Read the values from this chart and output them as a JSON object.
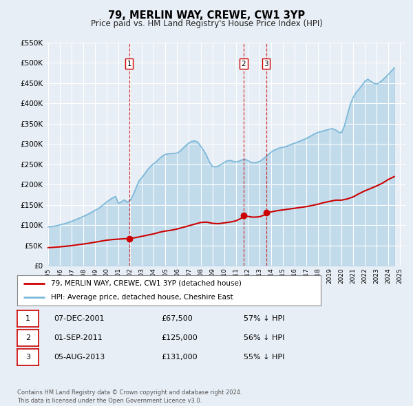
{
  "title": "79, MERLIN WAY, CREWE, CW1 3YP",
  "subtitle": "Price paid vs. HM Land Registry's House Price Index (HPI)",
  "hpi_color": "#7ab8d9",
  "price_color": "#cc0000",
  "marker_color": "#cc0000",
  "ylim": [
    0,
    550000
  ],
  "yticks": [
    0,
    50000,
    100000,
    150000,
    200000,
    250000,
    300000,
    350000,
    400000,
    450000,
    500000,
    550000
  ],
  "ytick_labels": [
    "£0",
    "£50K",
    "£100K",
    "£150K",
    "£200K",
    "£250K",
    "£300K",
    "£350K",
    "£400K",
    "£450K",
    "£500K",
    "£550K"
  ],
  "xmin": 1994.7,
  "xmax": 2025.5,
  "xtick_years": [
    1995,
    1996,
    1997,
    1998,
    1999,
    2000,
    2001,
    2002,
    2003,
    2004,
    2005,
    2006,
    2007,
    2008,
    2009,
    2010,
    2011,
    2012,
    2013,
    2014,
    2015,
    2016,
    2017,
    2018,
    2019,
    2020,
    2021,
    2022,
    2023,
    2024,
    2025
  ],
  "sale_dates": [
    2001.92,
    2011.67,
    2013.59
  ],
  "sale_prices": [
    67500,
    125000,
    131000
  ],
  "sale_labels": [
    "1",
    "2",
    "3"
  ],
  "vline_color": "#cc0000",
  "legend_label_red": "79, MERLIN WAY, CREWE, CW1 3YP (detached house)",
  "legend_label_blue": "HPI: Average price, detached house, Cheshire East",
  "table_rows": [
    [
      "1",
      "07-DEC-2001",
      "£67,500",
      "57% ↓ HPI"
    ],
    [
      "2",
      "01-SEP-2011",
      "£125,000",
      "56% ↓ HPI"
    ],
    [
      "3",
      "05-AUG-2013",
      "£131,000",
      "55% ↓ HPI"
    ]
  ],
  "footnote": "Contains HM Land Registry data © Crown copyright and database right 2024.\nThis data is licensed under the Open Government Licence v3.0.",
  "bg_color": "#e8eef5",
  "plot_bg_color": "#e8eef5",
  "grid_color": "#ffffff",
  "hpi_data_x": [
    1995.0,
    1995.25,
    1995.5,
    1995.75,
    1996.0,
    1996.25,
    1996.5,
    1996.75,
    1997.0,
    1997.25,
    1997.5,
    1997.75,
    1998.0,
    1998.25,
    1998.5,
    1998.75,
    1999.0,
    1999.25,
    1999.5,
    1999.75,
    2000.0,
    2000.25,
    2000.5,
    2000.75,
    2001.0,
    2001.25,
    2001.5,
    2001.75,
    2002.0,
    2002.25,
    2002.5,
    2002.75,
    2003.0,
    2003.25,
    2003.5,
    2003.75,
    2004.0,
    2004.25,
    2004.5,
    2004.75,
    2005.0,
    2005.25,
    2005.5,
    2005.75,
    2006.0,
    2006.25,
    2006.5,
    2006.75,
    2007.0,
    2007.25,
    2007.5,
    2007.75,
    2008.0,
    2008.25,
    2008.5,
    2008.75,
    2009.0,
    2009.25,
    2009.5,
    2009.75,
    2010.0,
    2010.25,
    2010.5,
    2010.75,
    2011.0,
    2011.25,
    2011.5,
    2011.75,
    2012.0,
    2012.25,
    2012.5,
    2012.75,
    2013.0,
    2013.25,
    2013.5,
    2013.75,
    2014.0,
    2014.25,
    2014.5,
    2014.75,
    2015.0,
    2015.25,
    2015.5,
    2015.75,
    2016.0,
    2016.25,
    2016.5,
    2016.75,
    2017.0,
    2017.25,
    2017.5,
    2017.75,
    2018.0,
    2018.25,
    2018.5,
    2018.75,
    2019.0,
    2019.25,
    2019.5,
    2019.75,
    2020.0,
    2020.25,
    2020.5,
    2020.75,
    2021.0,
    2021.25,
    2021.5,
    2021.75,
    2022.0,
    2022.25,
    2022.5,
    2022.75,
    2023.0,
    2023.25,
    2023.5,
    2023.75,
    2024.0,
    2024.25,
    2024.5
  ],
  "hpi_data_y": [
    96000,
    97000,
    98000,
    99500,
    101000,
    103000,
    105000,
    107500,
    110000,
    113000,
    116000,
    119000,
    122000,
    125500,
    129000,
    133000,
    137000,
    141000,
    146000,
    152000,
    158000,
    163000,
    168000,
    171000,
    154000,
    158000,
    163000,
    157000,
    162000,
    175000,
    193000,
    210000,
    218000,
    228000,
    238000,
    246000,
    252000,
    258000,
    265000,
    271000,
    275000,
    276000,
    277000,
    277500,
    278000,
    283000,
    290000,
    297000,
    303000,
    307000,
    308000,
    305000,
    295000,
    285000,
    272000,
    256000,
    245000,
    244000,
    246000,
    250000,
    255000,
    259000,
    260000,
    258000,
    256000,
    258000,
    261000,
    263000,
    260000,
    256000,
    254000,
    255000,
    257000,
    262000,
    268000,
    274000,
    280000,
    285000,
    288000,
    291000,
    292000,
    294000,
    297000,
    300000,
    302000,
    305000,
    308000,
    311000,
    314000,
    318000,
    322000,
    326000,
    329000,
    331000,
    333000,
    335000,
    337000,
    338000,
    335000,
    330000,
    328000,
    345000,
    372000,
    398000,
    415000,
    428000,
    436000,
    445000,
    455000,
    460000,
    455000,
    450000,
    448000,
    452000,
    458000,
    465000,
    472000,
    480000,
    488000
  ],
  "price_data_x": [
    1995.0,
    1995.5,
    1996.0,
    1996.5,
    1997.0,
    1997.5,
    1998.0,
    1998.5,
    1999.0,
    1999.5,
    2000.0,
    2000.5,
    2001.0,
    2001.5,
    2001.92,
    2002.5,
    2003.0,
    2003.5,
    2004.0,
    2004.5,
    2005.0,
    2005.5,
    2006.0,
    2006.5,
    2007.0,
    2007.5,
    2008.0,
    2008.5,
    2009.0,
    2009.5,
    2010.0,
    2010.5,
    2011.0,
    2011.5,
    2011.67,
    2012.0,
    2012.5,
    2013.0,
    2013.5,
    2013.59,
    2014.0,
    2014.5,
    2015.0,
    2015.5,
    2016.0,
    2016.5,
    2017.0,
    2017.5,
    2018.0,
    2018.5,
    2019.0,
    2019.5,
    2020.0,
    2020.5,
    2021.0,
    2021.5,
    2022.0,
    2022.5,
    2023.0,
    2023.5,
    2024.0,
    2024.5
  ],
  "price_data_y": [
    45000,
    46000,
    47000,
    48500,
    50000,
    52000,
    54000,
    56000,
    58500,
    61000,
    63500,
    65000,
    66000,
    67000,
    67500,
    70000,
    73000,
    76000,
    79000,
    83000,
    86000,
    88000,
    91000,
    95000,
    99000,
    103000,
    107000,
    108000,
    105000,
    104000,
    106000,
    108000,
    111000,
    118000,
    125000,
    122000,
    120000,
    121000,
    126000,
    131000,
    133000,
    136000,
    138000,
    140000,
    142000,
    144000,
    146000,
    149000,
    152000,
    156000,
    159000,
    162000,
    162000,
    165000,
    170000,
    178000,
    185000,
    191000,
    197000,
    204000,
    213000,
    220000
  ]
}
